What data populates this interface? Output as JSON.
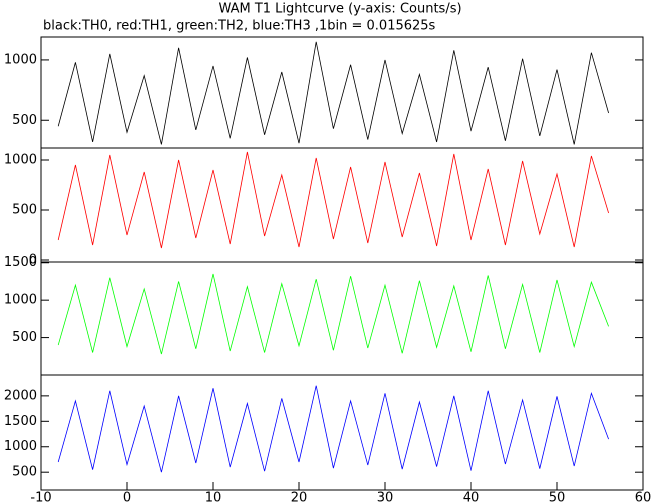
{
  "chart_data": [
    {
      "type": "line",
      "title": "WAM T1 Lightcurve (y-axis: Counts/s)",
      "subtitle": "black:TH0, red:TH1, green:TH2, blue:TH3 ,1bin = 0.015625s",
      "x": [
        -8,
        -6,
        -4,
        -2,
        0,
        2,
        4,
        6,
        8,
        10,
        12,
        14,
        16,
        18,
        20,
        22,
        24,
        26,
        28,
        30,
        32,
        34,
        36,
        38,
        40,
        42,
        44,
        46,
        48,
        50,
        52,
        54,
        56
      ],
      "xlim": [
        -10,
        60
      ],
      "ylim": [
        270,
        1190
      ],
      "yticks": [
        500,
        1000
      ],
      "series": [
        {
          "color": "#000000",
          "values": [
            450,
            980,
            320,
            1050,
            400,
            870,
            300,
            1100,
            420,
            950,
            350,
            1020,
            380,
            900,
            310,
            1150,
            430,
            960,
            340,
            1000,
            390,
            880,
            320,
            1080,
            410,
            940,
            330,
            1010,
            370,
            920,
            300,
            1060,
            560
          ]
        }
      ]
    },
    {
      "type": "line",
      "x": [
        -8,
        -6,
        -4,
        -2,
        0,
        2,
        4,
        6,
        8,
        10,
        12,
        14,
        16,
        18,
        20,
        22,
        24,
        26,
        28,
        30,
        32,
        34,
        36,
        38,
        40,
        42,
        44,
        46,
        48,
        50,
        52,
        54,
        56
      ],
      "xlim": [
        -10,
        60
      ],
      "ylim": [
        -20,
        1120
      ],
      "yticks": [
        0,
        500,
        1000
      ],
      "series": [
        {
          "color": "#ff0000",
          "values": [
            200,
            950,
            150,
            1050,
            250,
            880,
            120,
            1000,
            220,
            900,
            160,
            1080,
            240,
            850,
            130,
            1020,
            210,
            930,
            170,
            980,
            230,
            870,
            140,
            1060,
            200,
            910,
            150,
            990,
            260,
            860,
            130,
            1040,
            470
          ]
        }
      ]
    },
    {
      "type": "line",
      "x": [
        -8,
        -6,
        -4,
        -2,
        0,
        2,
        4,
        6,
        8,
        10,
        12,
        14,
        16,
        18,
        20,
        22,
        24,
        26,
        28,
        30,
        32,
        34,
        36,
        38,
        40,
        42,
        44,
        46,
        48,
        50,
        52,
        54,
        56
      ],
      "xlim": [
        -10,
        60
      ],
      "ylim": [
        0,
        1510
      ],
      "yticks": [
        500,
        1000,
        1500
      ],
      "series": [
        {
          "color": "#00ff00",
          "values": [
            400,
            1200,
            300,
            1300,
            380,
            1150,
            280,
            1250,
            350,
            1350,
            320,
            1180,
            300,
            1220,
            390,
            1280,
            330,
            1320,
            360,
            1200,
            290,
            1260,
            370,
            1190,
            310,
            1330,
            350,
            1210,
            300,
            1270,
            380,
            1240,
            650
          ]
        }
      ]
    },
    {
      "type": "line",
      "x": [
        -8,
        -6,
        -4,
        -2,
        0,
        2,
        4,
        6,
        8,
        10,
        12,
        14,
        16,
        18,
        20,
        22,
        24,
        26,
        28,
        30,
        32,
        34,
        36,
        38,
        40,
        42,
        44,
        46,
        48,
        50,
        52,
        54,
        56
      ],
      "xlim": [
        -10,
        60
      ],
      "ylim": [
        150,
        2410
      ],
      "yticks": [
        500,
        1000,
        1500,
        2000
      ],
      "xticks": [
        -10,
        0,
        10,
        20,
        30,
        40,
        50,
        60
      ],
      "series": [
        {
          "color": "#0000ff",
          "values": [
            700,
            1900,
            550,
            2100,
            650,
            1800,
            500,
            2000,
            680,
            2150,
            600,
            1850,
            520,
            1950,
            700,
            2200,
            580,
            1900,
            640,
            2050,
            560,
            1880,
            610,
            2000,
            530,
            2100,
            660,
            1920,
            570,
            1990,
            620,
            2050,
            1150
          ]
        }
      ]
    }
  ]
}
